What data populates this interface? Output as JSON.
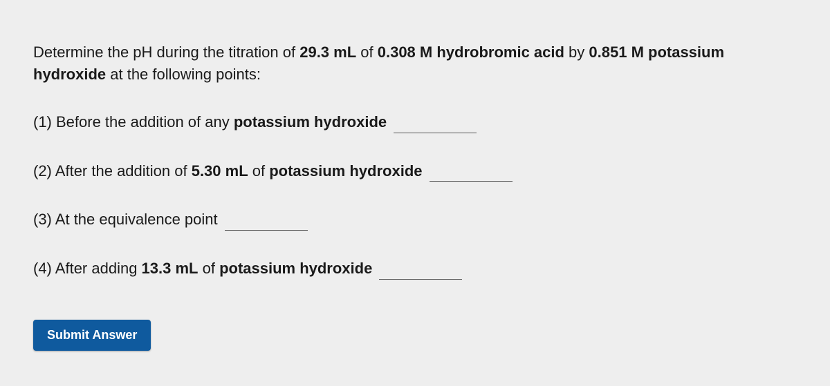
{
  "prompt": {
    "pre": "Determine the pH during the titration of ",
    "vol_acid": "29.3 mL",
    "of": " of ",
    "conc_acid": "0.308 M hydrobromic acid",
    "by": " by ",
    "conc_base": "0.851 M potassium hydroxide",
    "post": " at the following points:"
  },
  "questions": {
    "q1": {
      "number": "(1) ",
      "pre": "Before the addition of any ",
      "bold": "potassium hydroxide"
    },
    "q2": {
      "number": "(2) ",
      "pre": "After the addition of ",
      "bold1": "5.30 mL",
      "mid": " of ",
      "bold2": "potassium hydroxide"
    },
    "q3": {
      "number": "(3) ",
      "pre": "At the equivalence point"
    },
    "q4": {
      "number": "(4) ",
      "pre": "After adding ",
      "bold1": "13.3 mL",
      "mid": " of ",
      "bold2": "potassium hydroxide"
    }
  },
  "submit_label": "Submit Answer",
  "colors": {
    "background": "#eeeeee",
    "text": "#1a1a1a",
    "button_bg": "#0f5a9e",
    "button_text": "#ffffff",
    "input_border": "#555555"
  }
}
